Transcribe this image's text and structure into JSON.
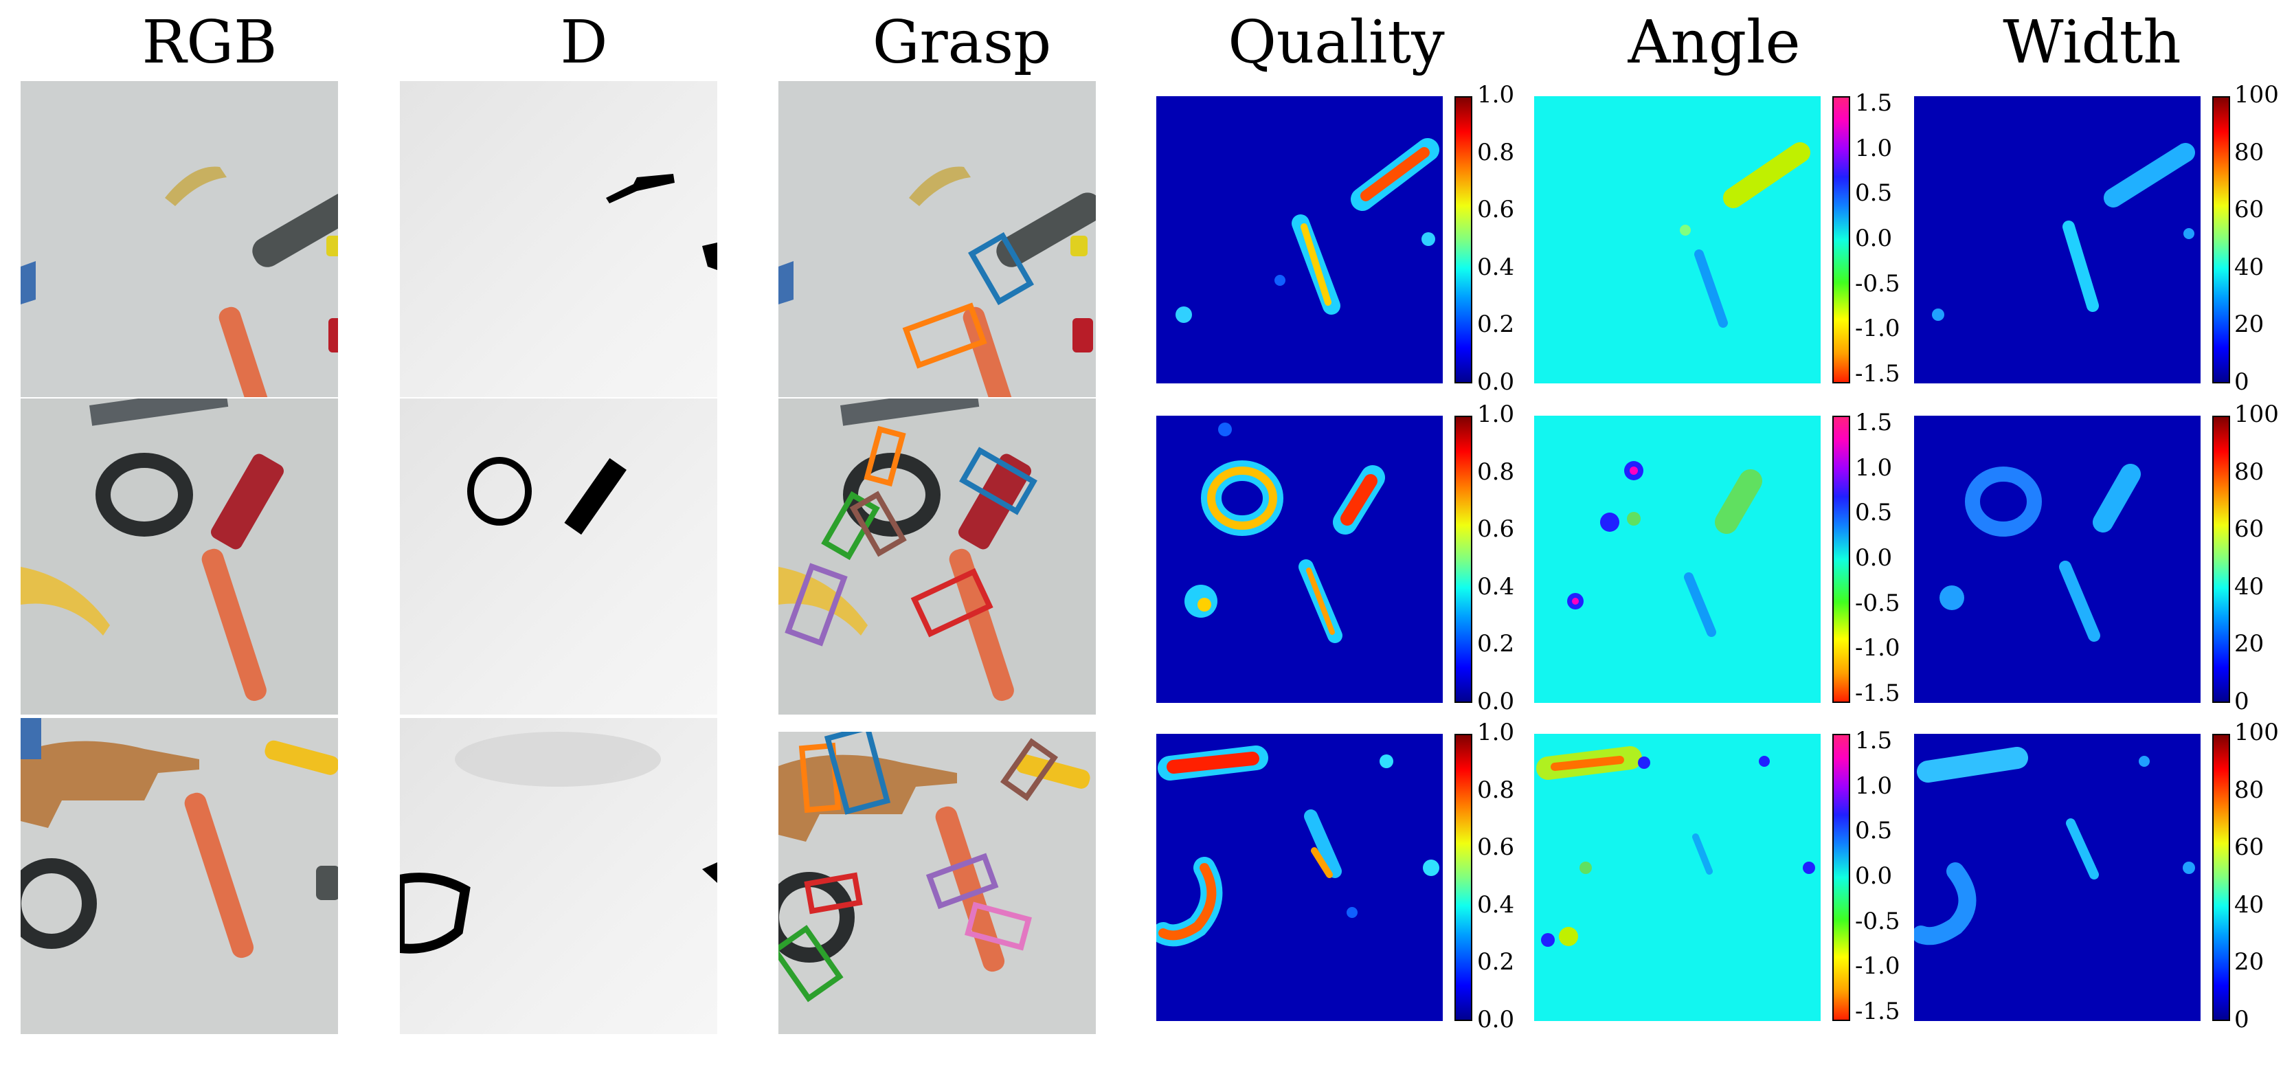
{
  "columns": [
    "RGB",
    "D",
    "Grasp",
    "Quality",
    "Angle",
    "Width"
  ],
  "colorbars": {
    "quality": [
      "1.0",
      "0.8",
      "0.6",
      "0.4",
      "0.2",
      "0.0"
    ],
    "angle": [
      "1.5",
      "1.0",
      "0.5",
      "0.0",
      "-0.5",
      "-1.0",
      "-1.5"
    ],
    "width": [
      "100",
      "80",
      "60",
      "40",
      "20",
      "0"
    ]
  },
  "colors": {
    "heatmap_background": "#0000b4",
    "angle_background": "#12f6f0",
    "grasp_boxes": [
      "#1f77b4",
      "#ff7f0e",
      "#2ca02c",
      "#d62728",
      "#9467bd",
      "#8c564b",
      "#e377c2"
    ]
  },
  "rows": [
    {
      "scene": "row-1",
      "grasps": [
        "blue",
        "orange"
      ]
    },
    {
      "scene": "row-2",
      "grasps": [
        "orange",
        "blue",
        "green",
        "brown",
        "purple",
        "red"
      ]
    },
    {
      "scene": "row-3",
      "grasps": [
        "orange",
        "blue",
        "brown",
        "red",
        "purple",
        "green",
        "pink"
      ]
    }
  ]
}
